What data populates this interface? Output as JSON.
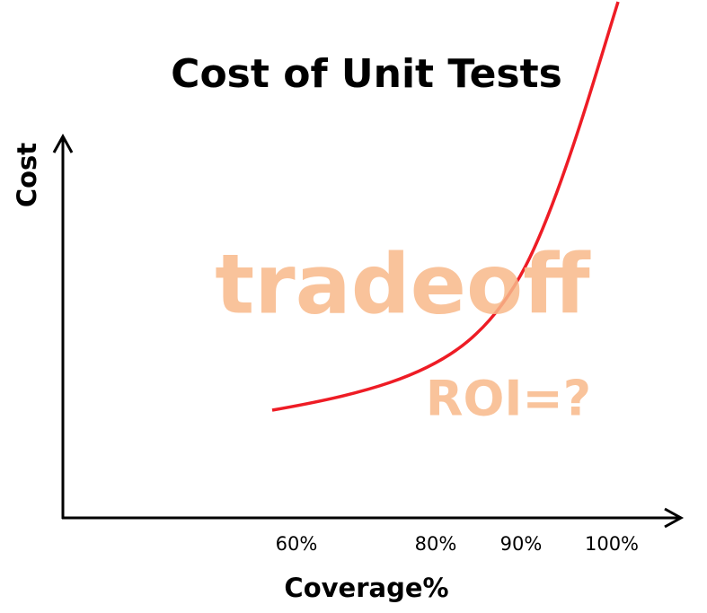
{
  "title": "Cost of Unit Tests",
  "y_axis_label": "Cost",
  "x_axis_label": "Coverage%",
  "x_tick_labels": [
    "60%",
    "80%",
    "90%",
    "100%"
  ],
  "annotations": [
    "tradeoff",
    "ROI=?"
  ]
}
